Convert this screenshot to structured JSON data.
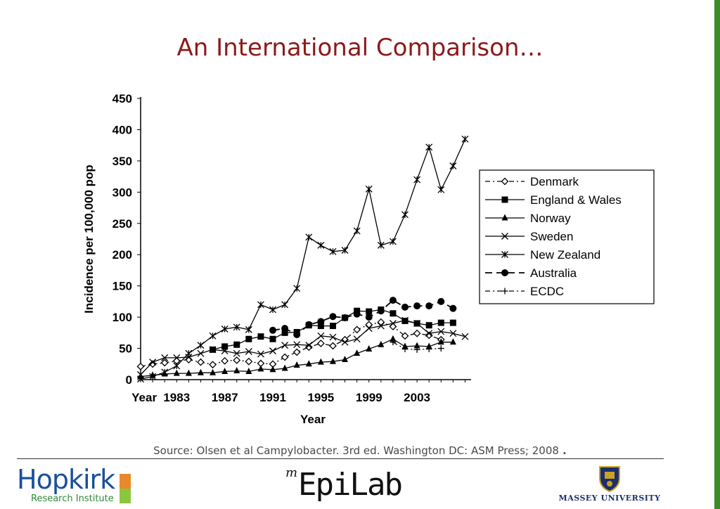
{
  "slide": {
    "title": "An International Comparison…",
    "source": "Source: Olsen et al Campylobacter. 3rd ed. Washington DC: ASM Press; 2008",
    "source_trail": " .",
    "logos": {
      "hopkirk_name": "Hopkirk",
      "hopkirk_sub": "Research Institute",
      "epilab_m": "m",
      "epilab_name": "EpiLab",
      "massey_name": "MASSEY UNIVERSITY"
    },
    "colors": {
      "title": "#8b1a1a",
      "edge_bar": "#3d8a2a",
      "hopkirk_blue": "#1b4f9a",
      "hopkirk_green": "#2e8b3a",
      "massey_blue": "#1b2f6b"
    }
  },
  "chart_data": {
    "type": "line",
    "xlabel": "Year",
    "ylabel": "Incidence per 100,000 pop",
    "ylim": [
      0,
      450
    ],
    "yticks": [
      0,
      50,
      100,
      150,
      200,
      250,
      300,
      350,
      400,
      450
    ],
    "xlim": [
      1980,
      2007.5
    ],
    "xtick_labels": [
      {
        "label": "Year",
        "x": 1980.3
      },
      {
        "label": "1983",
        "x": 1983
      },
      {
        "label": "1987",
        "x": 1987
      },
      {
        "label": "1991",
        "x": 1991
      },
      {
        "label": "1995",
        "x": 1995
      },
      {
        "label": "1999",
        "x": 1999
      },
      {
        "label": "2003",
        "x": 2003
      }
    ],
    "legend_position": "right",
    "series": [
      {
        "name": "Denmark",
        "marker": "diamond",
        "dash": "dashdot",
        "points": [
          [
            1980,
            21
          ],
          [
            1981,
            25
          ],
          [
            1982,
            27
          ],
          [
            1983,
            30
          ],
          [
            1984,
            32
          ],
          [
            1985,
            28
          ],
          [
            1986,
            24
          ],
          [
            1987,
            30
          ],
          [
            1988,
            31
          ],
          [
            1989,
            29
          ],
          [
            1990,
            26
          ],
          [
            1991,
            25
          ],
          [
            1992,
            36
          ],
          [
            1993,
            44
          ],
          [
            1994,
            52
          ],
          [
            1995,
            58
          ],
          [
            1996,
            54
          ],
          [
            1997,
            64
          ],
          [
            1998,
            80
          ],
          [
            1999,
            88
          ],
          [
            2000,
            92
          ],
          [
            2001,
            85
          ],
          [
            2002,
            70
          ],
          [
            2003,
            74
          ],
          [
            2004,
            71
          ],
          [
            2005,
            64
          ]
        ]
      },
      {
        "name": "England & Wales",
        "marker": "square",
        "dash": "solid",
        "points": [
          [
            1986,
            48
          ],
          [
            1987,
            53
          ],
          [
            1988,
            56
          ],
          [
            1989,
            65
          ],
          [
            1990,
            69
          ],
          [
            1991,
            65
          ],
          [
            1992,
            75
          ],
          [
            1993,
            76
          ],
          [
            1994,
            87
          ],
          [
            1995,
            86
          ],
          [
            1996,
            86
          ],
          [
            1997,
            99
          ],
          [
            1998,
            110
          ],
          [
            1999,
            109
          ],
          [
            2000,
            112
          ],
          [
            2001,
            106
          ],
          [
            2002,
            94
          ],
          [
            2003,
            90
          ],
          [
            2004,
            87
          ],
          [
            2005,
            91
          ],
          [
            2006,
            91
          ]
        ]
      },
      {
        "name": "Norway",
        "marker": "triangle",
        "dash": "solid",
        "points": [
          [
            1980,
            5
          ],
          [
            1981,
            7
          ],
          [
            1982,
            9
          ],
          [
            1983,
            10
          ],
          [
            1984,
            10
          ],
          [
            1985,
            11
          ],
          [
            1986,
            11
          ],
          [
            1987,
            13
          ],
          [
            1988,
            14
          ],
          [
            1989,
            13
          ],
          [
            1990,
            17
          ],
          [
            1991,
            16
          ],
          [
            1992,
            18
          ],
          [
            1993,
            23
          ],
          [
            1994,
            25
          ],
          [
            1995,
            28
          ],
          [
            1996,
            29
          ],
          [
            1997,
            32
          ],
          [
            1998,
            42
          ],
          [
            1999,
            49
          ],
          [
            2000,
            56
          ],
          [
            2001,
            65
          ],
          [
            2002,
            53
          ],
          [
            2003,
            54
          ],
          [
            2004,
            53
          ],
          [
            2005,
            60
          ],
          [
            2006,
            60
          ]
        ]
      },
      {
        "name": "Sweden",
        "marker": "x",
        "dash": "solid",
        "points": [
          [
            1980,
            8
          ],
          [
            1981,
            28
          ],
          [
            1982,
            35
          ],
          [
            1983,
            35
          ],
          [
            1984,
            36
          ],
          [
            1985,
            42
          ],
          [
            1986,
            48
          ],
          [
            1987,
            46
          ],
          [
            1988,
            42
          ],
          [
            1989,
            45
          ],
          [
            1990,
            41
          ],
          [
            1991,
            46
          ],
          [
            1992,
            55
          ],
          [
            1993,
            56
          ],
          [
            1994,
            55
          ],
          [
            1995,
            70
          ],
          [
            1996,
            68
          ],
          [
            1997,
            60
          ],
          [
            1998,
            65
          ],
          [
            1999,
            82
          ],
          [
            2000,
            86
          ],
          [
            2001,
            90
          ],
          [
            2002,
            95
          ],
          [
            2003,
            90
          ],
          [
            2004,
            74
          ],
          [
            2005,
            77
          ],
          [
            2006,
            74
          ],
          [
            2007,
            69
          ]
        ]
      },
      {
        "name": "New Zealand",
        "marker": "asterisk",
        "dash": "solid",
        "points": [
          [
            1980,
            1
          ],
          [
            1981,
            5
          ],
          [
            1982,
            12
          ],
          [
            1983,
            22
          ],
          [
            1984,
            42
          ],
          [
            1985,
            55
          ],
          [
            1986,
            70
          ],
          [
            1987,
            81
          ],
          [
            1988,
            84
          ],
          [
            1989,
            80
          ],
          [
            1990,
            120
          ],
          [
            1991,
            112
          ],
          [
            1992,
            120
          ],
          [
            1993,
            146
          ],
          [
            1994,
            228
          ],
          [
            1995,
            215
          ],
          [
            1996,
            205
          ],
          [
            1997,
            207
          ],
          [
            1998,
            238
          ],
          [
            1999,
            305
          ],
          [
            2000,
            215
          ],
          [
            2001,
            221
          ],
          [
            2002,
            264
          ],
          [
            2003,
            320
          ],
          [
            2004,
            372
          ],
          [
            2005,
            304
          ],
          [
            2006,
            342
          ],
          [
            2007,
            385
          ]
        ]
      },
      {
        "name": "Australia",
        "marker": "circle",
        "dash": "dash",
        "points": [
          [
            1991,
            79
          ],
          [
            1992,
            82
          ],
          [
            1993,
            72
          ],
          [
            1994,
            88
          ],
          [
            1995,
            93
          ],
          [
            1996,
            101
          ],
          [
            1997,
            99
          ],
          [
            1998,
            105
          ],
          [
            1999,
            100
          ],
          [
            2000,
            110
          ],
          [
            2001,
            127
          ],
          [
            2002,
            116
          ],
          [
            2003,
            118
          ],
          [
            2004,
            118
          ],
          [
            2005,
            125
          ],
          [
            2006,
            114
          ]
        ]
      },
      {
        "name": "ECDC",
        "marker": "plus",
        "dash": "dashdot",
        "points": [
          [
            2001,
            60
          ],
          [
            2002,
            49
          ],
          [
            2003,
            48
          ],
          [
            2004,
            49
          ],
          [
            2005,
            50
          ]
        ]
      }
    ]
  }
}
